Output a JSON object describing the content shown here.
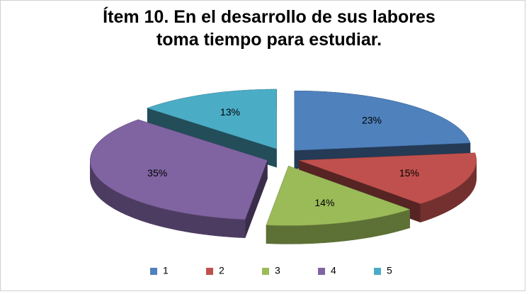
{
  "chart_data": {
    "type": "pie",
    "title": "Ítem 10.  En el desarrollo de sus labores toma tiempo para estudiar.",
    "categories": [
      "1",
      "2",
      "3",
      "4",
      "5"
    ],
    "values": [
      23,
      15,
      14,
      35,
      13
    ],
    "value_labels": [
      "23%",
      "15%",
      "14%",
      "35%",
      "13%"
    ],
    "colors": [
      "#4f81bd",
      "#c0504d",
      "#9bbb59",
      "#8064a2",
      "#4bacc6"
    ],
    "legend": "bottom"
  }
}
